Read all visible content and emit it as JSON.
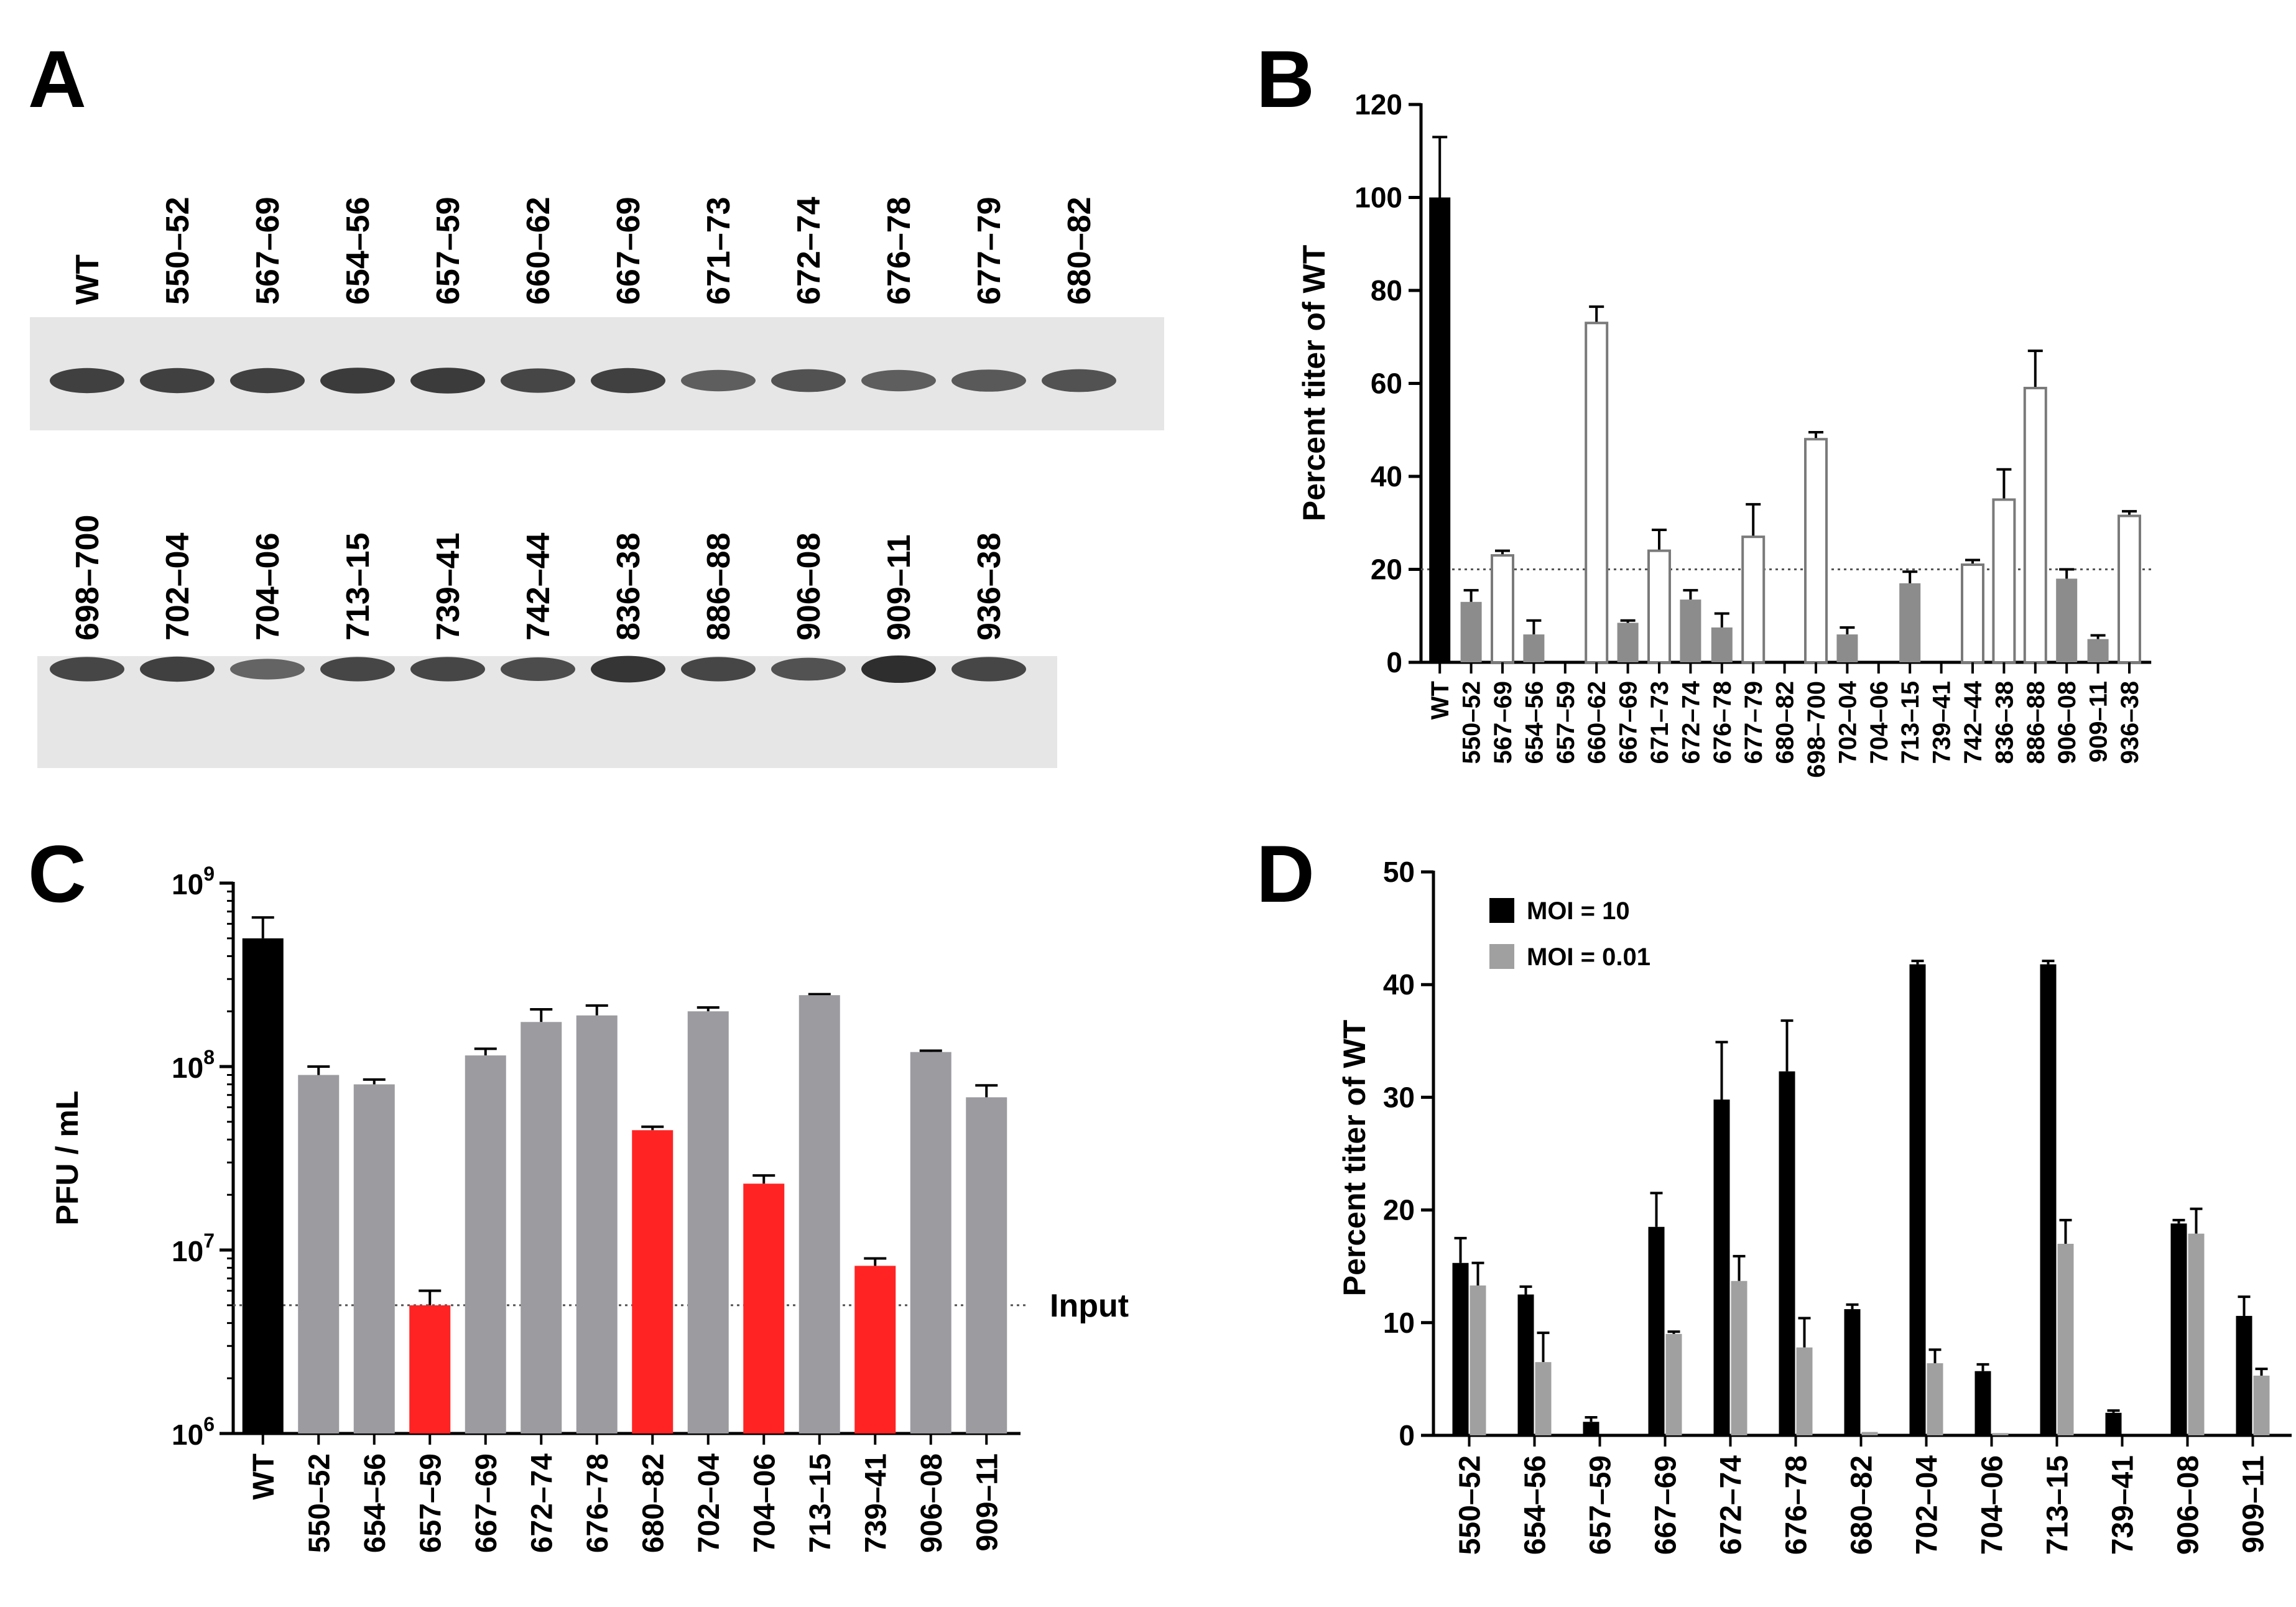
{
  "panel_letters": [
    "A",
    "B",
    "C",
    "D"
  ],
  "colors": {
    "black": "#000000",
    "gray_b": "#8c8c8c",
    "gray_c": "#9b9ba0",
    "red": "#ff2323",
    "gray_d": "#a0a0a0",
    "blot_bg": "#e6e6e6",
    "band": "#2e2e2e"
  },
  "chart_data": [
    {
      "panel": "A",
      "type": "western_blot",
      "rows": [
        {
          "lanes": [
            "WT",
            "550–52",
            "567–69",
            "654–56",
            "657–59",
            "660–62",
            "667–69",
            "671–73",
            "672–74",
            "676–78",
            "677–79",
            "680–82"
          ],
          "band_intensity": [
            0.85,
            0.85,
            0.85,
            0.9,
            0.9,
            0.8,
            0.85,
            0.6,
            0.7,
            0.6,
            0.65,
            0.7
          ]
        },
        {
          "lanes": [
            "698–700",
            "702–04",
            "704–06",
            "713–15",
            "739–41",
            "742–44",
            "836–38",
            "886–88",
            "906–08",
            "909–11",
            "936–38"
          ],
          "band_intensity": [
            0.8,
            0.85,
            0.55,
            0.8,
            0.8,
            0.75,
            0.95,
            0.8,
            0.7,
            1.0,
            0.8
          ]
        }
      ]
    },
    {
      "panel": "B",
      "type": "bar",
      "ylabel": "Percent titer of WT",
      "ylim": [
        0,
        120
      ],
      "yticks": [
        0,
        20,
        40,
        60,
        80,
        100,
        120
      ],
      "reference_line": 20,
      "categories": [
        "WT",
        "550–52",
        "567–69",
        "654–56",
        "657–59",
        "660–62",
        "667–69",
        "671–73",
        "672–74",
        "676–78",
        "677–79",
        "680–82",
        "698–700",
        "702–04",
        "704–06",
        "713–15",
        "739–41",
        "742–44",
        "836–38",
        "886–88",
        "906–08",
        "909–11",
        "936–38"
      ],
      "values": [
        100,
        13,
        23,
        6,
        0,
        73,
        8.5,
        24,
        13.5,
        7.5,
        27,
        0,
        48,
        6,
        0,
        17,
        0,
        21,
        35,
        59,
        18,
        5,
        31.5
      ],
      "errors": [
        13,
        2.5,
        1,
        3,
        0,
        3.5,
        0.5,
        4.5,
        2,
        3,
        7,
        0,
        1.5,
        1.5,
        0,
        2.5,
        0,
        1,
        6.5,
        8,
        2,
        0.8,
        1
      ],
      "styles": [
        "black",
        "gray",
        "open",
        "gray",
        "none",
        "open",
        "gray",
        "open",
        "gray",
        "gray",
        "open",
        "none",
        "open",
        "gray",
        "none",
        "gray",
        "none",
        "open",
        "open",
        "open",
        "gray",
        "gray",
        "open"
      ]
    },
    {
      "panel": "C",
      "type": "bar",
      "yscale": "log",
      "ylabel": "PFU / mL",
      "ylim": [
        1000000,
        1000000000
      ],
      "ytick_base": "10",
      "ytick_exponents": [
        "6",
        "7",
        "8",
        "9"
      ],
      "reference_value": 5000000,
      "reference_label": "Input",
      "categories": [
        "WT",
        "550–52",
        "654–56",
        "657–59",
        "667–69",
        "672–74",
        "676–78",
        "680–82",
        "702–04",
        "704–06",
        "713–15",
        "739–41",
        "906–08",
        "909–11"
      ],
      "values": [
        500000000,
        90000000,
        80000000,
        5000000,
        115000000,
        175000000,
        190000000,
        45000000,
        200000000,
        23000000,
        245000000,
        8200000,
        120000000,
        68000000
      ],
      "errors_high": [
        650000000,
        100000000,
        85000000,
        6000000,
        125000000,
        205000000,
        215000000,
        47000000,
        210000000,
        25500000,
        248000000,
        9000000,
        122000000,
        79000000
      ],
      "colors": [
        "black",
        "gray",
        "gray",
        "red",
        "gray",
        "gray",
        "gray",
        "red",
        "gray",
        "red",
        "gray",
        "red",
        "gray",
        "gray"
      ]
    },
    {
      "panel": "D",
      "type": "bar",
      "ylabel": "Percent titer of WT",
      "ylim": [
        0,
        50
      ],
      "yticks": [
        0,
        10,
        20,
        30,
        40,
        50
      ],
      "categories": [
        "550–52",
        "654–56",
        "657–59",
        "667–69",
        "672–74",
        "676–78",
        "680–82",
        "702–04",
        "704–06",
        "713–15",
        "739–41",
        "906–08",
        "909–11"
      ],
      "series": [
        {
          "name": "MOI = 10",
          "color": "black",
          "values": [
            15.3,
            12.5,
            1.2,
            18.5,
            29.8,
            32.3,
            11.2,
            41.8,
            5.7,
            41.8,
            2,
            18.8,
            10.6
          ],
          "errors": [
            2.2,
            0.7,
            0.4,
            3,
            5.1,
            4.5,
            0.4,
            0.3,
            0.6,
            0.3,
            0.2,
            0.3,
            1.7
          ]
        },
        {
          "name": "MOI = 0.01",
          "color": "gray",
          "values": [
            13.3,
            6.5,
            0,
            9,
            13.7,
            7.8,
            0.3,
            6.4,
            0.2,
            17,
            0,
            17.9,
            5.3
          ],
          "errors": [
            2,
            2.6,
            0,
            0.2,
            2.2,
            2.6,
            0,
            1.2,
            0,
            2.1,
            0,
            2.2,
            0.6
          ]
        }
      ]
    }
  ]
}
